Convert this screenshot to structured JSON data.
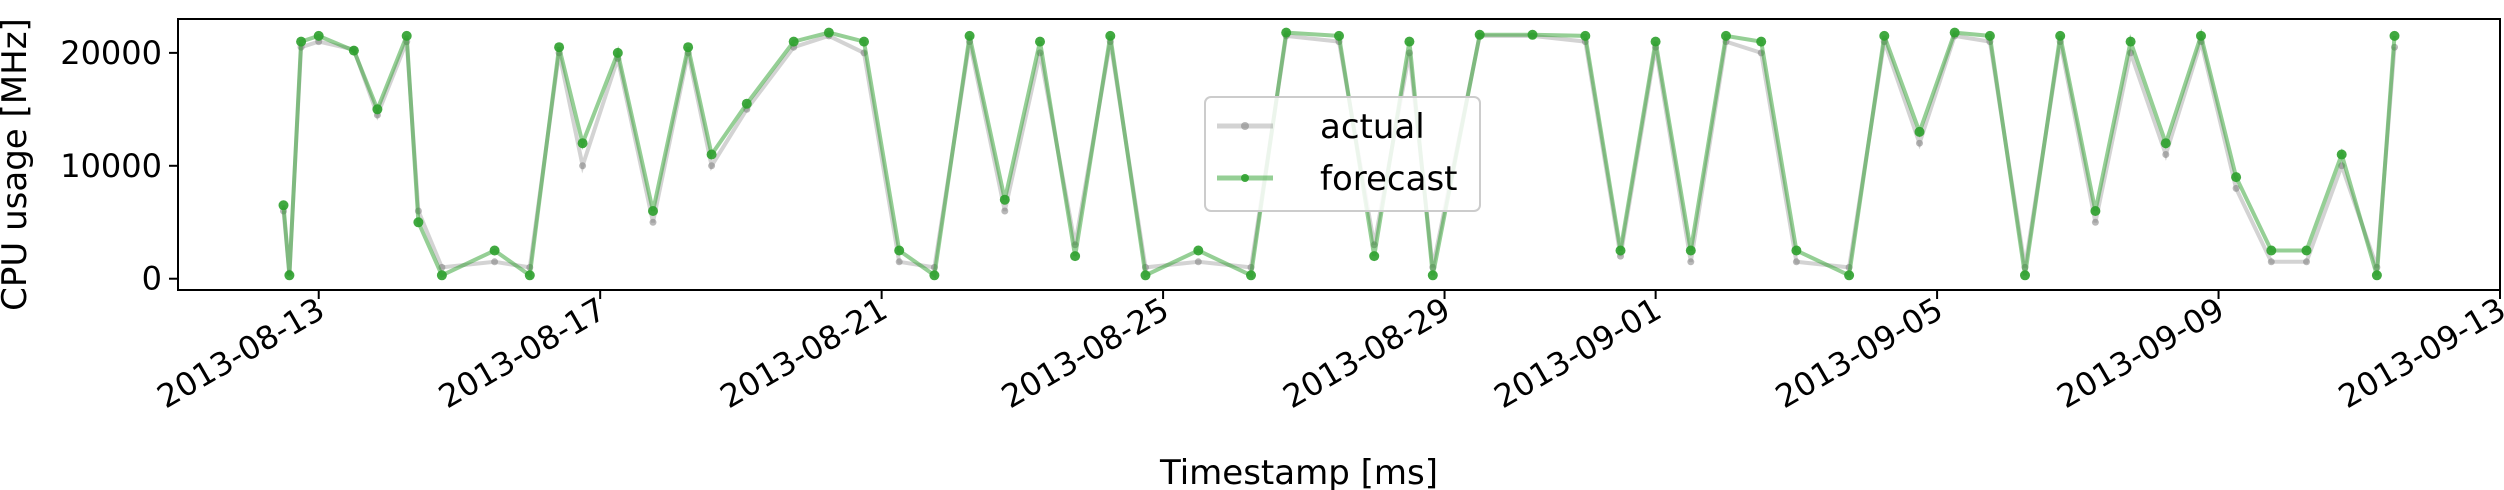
{
  "chart_data": {
    "type": "line",
    "title": "",
    "xlabel": "Timestamp [ms]",
    "ylabel": "CPU usage [MHz]",
    "x_ticks": [
      "2013-08-13",
      "2013-08-17",
      "2013-08-21",
      "2013-08-25",
      "2013-08-29",
      "2013-09-01",
      "2013-09-05",
      "2013-09-09",
      "2013-09-13"
    ],
    "y_ticks": [
      0,
      10000,
      20000
    ],
    "xlim": [
      "2013-08-11",
      "2013-09-13"
    ],
    "ylim": [
      -1000,
      23000
    ],
    "grid": false,
    "legend_position": "center",
    "series": [
      {
        "name": "actual",
        "color": "#808080",
        "points": [
          [
            "2013-08-12T12:00",
            6000
          ],
          [
            "2013-08-12T14:00",
            500
          ],
          [
            "2013-08-12T18:00",
            20500
          ],
          [
            "2013-08-13T00:00",
            21000
          ],
          [
            "2013-08-13T12:00",
            20300
          ],
          [
            "2013-08-13T20:00",
            14500
          ],
          [
            "2013-08-14T06:00",
            21000
          ],
          [
            "2013-08-14T10:00",
            6000
          ],
          [
            "2013-08-14T18:00",
            1000
          ],
          [
            "2013-08-15T12:00",
            1500
          ],
          [
            "2013-08-16T00:00",
            1000
          ],
          [
            "2013-08-16T10:00",
            20000
          ],
          [
            "2013-08-16T18:00",
            10000
          ],
          [
            "2013-08-17T06:00",
            19500
          ],
          [
            "2013-08-17T18:00",
            5000
          ],
          [
            "2013-08-18T06:00",
            20000
          ],
          [
            "2013-08-18T14:00",
            10000
          ],
          [
            "2013-08-19T02:00",
            15000
          ],
          [
            "2013-08-19T18:00",
            20500
          ],
          [
            "2013-08-20T06:00",
            21500
          ],
          [
            "2013-08-20T18:00",
            20000
          ],
          [
            "2013-08-21T06:00",
            1500
          ],
          [
            "2013-08-21T18:00",
            1000
          ],
          [
            "2013-08-22T06:00",
            21000
          ],
          [
            "2013-08-22T18:00",
            6000
          ],
          [
            "2013-08-23T06:00",
            20000
          ],
          [
            "2013-08-23T18:00",
            3000
          ],
          [
            "2013-08-24T06:00",
            21000
          ],
          [
            "2013-08-24T18:00",
            1000
          ],
          [
            "2013-08-25T12:00",
            1500
          ],
          [
            "2013-08-26T06:00",
            1000
          ],
          [
            "2013-08-26T18:00",
            21500
          ],
          [
            "2013-08-27T12:00",
            21000
          ],
          [
            "2013-08-28T00:00",
            3000
          ],
          [
            "2013-08-28T12:00",
            20000
          ],
          [
            "2013-08-28T20:00",
            1000
          ],
          [
            "2013-08-29T12:00",
            21500
          ],
          [
            "2013-08-30T06:00",
            21500
          ],
          [
            "2013-08-31T00:00",
            21000
          ],
          [
            "2013-08-31T12:00",
            2000
          ],
          [
            "2013-09-01T00:00",
            20500
          ],
          [
            "2013-09-01T12:00",
            1500
          ],
          [
            "2013-09-02T00:00",
            21000
          ],
          [
            "2013-09-02T12:00",
            20000
          ],
          [
            "2013-09-03T00:00",
            1500
          ],
          [
            "2013-09-03T18:00",
            1000
          ],
          [
            "2013-09-04T06:00",
            21000
          ],
          [
            "2013-09-04T18:00",
            12000
          ],
          [
            "2013-09-05T06:00",
            21500
          ],
          [
            "2013-09-05T18:00",
            21000
          ],
          [
            "2013-09-06T06:00",
            1000
          ],
          [
            "2013-09-06T18:00",
            21000
          ],
          [
            "2013-09-07T06:00",
            5000
          ],
          [
            "2013-09-07T18:00",
            20000
          ],
          [
            "2013-09-08T06:00",
            11000
          ],
          [
            "2013-09-08T18:00",
            21000
          ],
          [
            "2013-09-09T06:00",
            8000
          ],
          [
            "2013-09-09T18:00",
            1500
          ],
          [
            "2013-09-10T06:00",
            1500
          ],
          [
            "2013-09-10T18:00",
            10000
          ],
          [
            "2013-09-11T06:00",
            1000
          ],
          [
            "2013-09-11T12:00",
            20500
          ]
        ]
      },
      {
        "name": "forecast",
        "color": "#2ca02c",
        "points": [
          [
            "2013-08-12T12:00",
            6500
          ],
          [
            "2013-08-12T14:00",
            300
          ],
          [
            "2013-08-12T18:00",
            21000
          ],
          [
            "2013-08-13T00:00",
            21500
          ],
          [
            "2013-08-13T12:00",
            20200
          ],
          [
            "2013-08-13T20:00",
            15000
          ],
          [
            "2013-08-14T06:00",
            21500
          ],
          [
            "2013-08-14T10:00",
            5000
          ],
          [
            "2013-08-14T18:00",
            300
          ],
          [
            "2013-08-15T12:00",
            2500
          ],
          [
            "2013-08-16T00:00",
            300
          ],
          [
            "2013-08-16T10:00",
            20500
          ],
          [
            "2013-08-16T18:00",
            12000
          ],
          [
            "2013-08-17T06:00",
            20000
          ],
          [
            "2013-08-17T18:00",
            6000
          ],
          [
            "2013-08-18T06:00",
            20500
          ],
          [
            "2013-08-18T14:00",
            11000
          ],
          [
            "2013-08-19T02:00",
            15500
          ],
          [
            "2013-08-19T18:00",
            21000
          ],
          [
            "2013-08-20T06:00",
            21800
          ],
          [
            "2013-08-20T18:00",
            21000
          ],
          [
            "2013-08-21T06:00",
            2500
          ],
          [
            "2013-08-21T18:00",
            300
          ],
          [
            "2013-08-22T06:00",
            21500
          ],
          [
            "2013-08-22T18:00",
            7000
          ],
          [
            "2013-08-23T06:00",
            21000
          ],
          [
            "2013-08-23T18:00",
            2000
          ],
          [
            "2013-08-24T06:00",
            21500
          ],
          [
            "2013-08-24T18:00",
            300
          ],
          [
            "2013-08-25T12:00",
            2500
          ],
          [
            "2013-08-26T06:00",
            300
          ],
          [
            "2013-08-26T18:00",
            21800
          ],
          [
            "2013-08-27T12:00",
            21500
          ],
          [
            "2013-08-28T00:00",
            2000
          ],
          [
            "2013-08-28T12:00",
            21000
          ],
          [
            "2013-08-28T20:00",
            300
          ],
          [
            "2013-08-29T12:00",
            21600
          ],
          [
            "2013-08-30T06:00",
            21600
          ],
          [
            "2013-08-31T00:00",
            21500
          ],
          [
            "2013-08-31T12:00",
            2500
          ],
          [
            "2013-09-01T00:00",
            21000
          ],
          [
            "2013-09-01T12:00",
            2500
          ],
          [
            "2013-09-02T00:00",
            21500
          ],
          [
            "2013-09-02T12:00",
            21000
          ],
          [
            "2013-09-03T00:00",
            2500
          ],
          [
            "2013-09-03T18:00",
            300
          ],
          [
            "2013-09-04T06:00",
            21500
          ],
          [
            "2013-09-04T18:00",
            13000
          ],
          [
            "2013-09-05T06:00",
            21800
          ],
          [
            "2013-09-05T18:00",
            21500
          ],
          [
            "2013-09-06T06:00",
            300
          ],
          [
            "2013-09-06T18:00",
            21500
          ],
          [
            "2013-09-07T06:00",
            6000
          ],
          [
            "2013-09-07T18:00",
            21000
          ],
          [
            "2013-09-08T06:00",
            12000
          ],
          [
            "2013-09-08T18:00",
            21500
          ],
          [
            "2013-09-09T06:00",
            9000
          ],
          [
            "2013-09-09T18:00",
            2500
          ],
          [
            "2013-09-10T06:00",
            2500
          ],
          [
            "2013-09-10T18:00",
            11000
          ],
          [
            "2013-09-11T06:00",
            300
          ],
          [
            "2013-09-11T12:00",
            21500
          ]
        ]
      }
    ]
  }
}
